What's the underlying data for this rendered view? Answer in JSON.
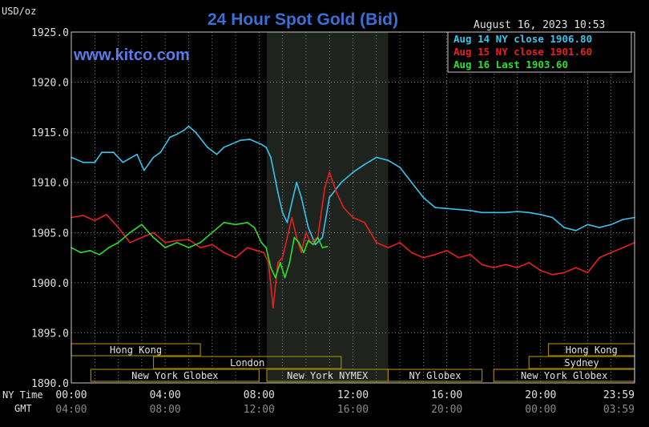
{
  "chart_data": {
    "type": "line",
    "title": "24 Hour Spot Gold (Bid)",
    "watermark": "www.kitco.com",
    "timestamp": "August 16, 2023 10:53",
    "ylabel": "USD/oz",
    "ylim": [
      1890,
      1925
    ],
    "yticks": [
      "1925.0",
      "1920.0",
      "1915.0",
      "1910.0",
      "1905.0",
      "1900.0",
      "1895.0",
      "1890.0"
    ],
    "x_axis_ny_label": "NY Time",
    "x_axis_gmt_label": "GMT",
    "xticks_ny": [
      "00:00",
      "04:00",
      "08:00",
      "12:00",
      "16:00",
      "20:00",
      "23:59"
    ],
    "xticks_gmt": [
      "04:00",
      "08:00",
      "12:00",
      "16:00",
      "20:00",
      "00:00",
      "03:59"
    ],
    "xlim": [
      0,
      24
    ],
    "shaded_region": [
      8.33,
      13.5
    ],
    "grid": true,
    "legend_position": "top-right",
    "colors": {
      "background": "#000000",
      "grid": "#c8c8c8",
      "title": "#3a6fd8",
      "watermark": "#5a7be8",
      "sessions": "#a08000",
      "session_text": "#e0e0e0",
      "shade": "#1e231e"
    },
    "markets": [
      {
        "name": "Hong Kong",
        "row": 0,
        "start": 0,
        "end": 5.5
      },
      {
        "name": "Hong Kong",
        "row": 0,
        "start": 20.33,
        "end": 24
      },
      {
        "name": "London",
        "row": 1,
        "start": 3.5,
        "end": 11.5
      },
      {
        "name": "Sydney",
        "row": 1,
        "start": 19.5,
        "end": 24
      },
      {
        "name": "New York Globex",
        "row": 2,
        "start": 0.83,
        "end": 8.0
      },
      {
        "name": "New York NYMEX",
        "row": 2,
        "start": 8.33,
        "end": 13.5
      },
      {
        "name": "NY Globex",
        "row": 2,
        "start": 13.5,
        "end": 17.5
      },
      {
        "name": "New York Globex",
        "row": 2,
        "start": 18.0,
        "end": 24
      }
    ],
    "series": [
      {
        "name": "Aug 14 NY close 1906.80",
        "color": "#3ac3ec",
        "x": [
          0,
          0.5,
          1.0,
          1.3,
          1.8,
          2.2,
          2.8,
          3.1,
          3.5,
          3.8,
          4.2,
          4.5,
          4.8,
          5.0,
          5.3,
          5.8,
          6.2,
          6.5,
          6.8,
          7.2,
          7.6,
          7.9,
          8.1,
          8.3,
          8.5,
          8.8,
          9.0,
          9.2,
          9.4,
          9.6,
          9.8,
          10.1,
          10.4,
          10.7,
          11.0,
          11.5,
          12.0,
          12.5,
          13.0,
          13.5,
          14.0,
          14.5,
          15.0,
          15.5,
          16.0,
          16.5,
          17.0,
          17.5,
          18.0,
          18.5,
          19.0,
          19.5,
          20.0,
          20.5,
          21.0,
          21.5,
          22.0,
          22.5,
          23.0,
          23.5,
          24.0
        ],
        "y": [
          1912.5,
          1912.0,
          1912.0,
          1913.0,
          1913.0,
          1912.0,
          1912.8,
          1911.2,
          1912.5,
          1913.0,
          1914.5,
          1914.8,
          1915.2,
          1915.6,
          1915.0,
          1913.5,
          1912.8,
          1913.5,
          1913.8,
          1914.2,
          1914.3,
          1914.0,
          1913.8,
          1913.5,
          1912.5,
          1909.0,
          1907.0,
          1906.0,
          1908.0,
          1910.0,
          1908.5,
          1905.5,
          1903.8,
          1904.5,
          1908.5,
          1910.0,
          1911.0,
          1911.8,
          1912.5,
          1912.2,
          1911.5,
          1910.0,
          1908.5,
          1907.5,
          1907.4,
          1907.3,
          1907.2,
          1907.0,
          1907.0,
          1907.0,
          1907.1,
          1907.0,
          1906.8,
          1906.5,
          1905.5,
          1905.2,
          1905.8,
          1905.5,
          1905.8,
          1906.3,
          1906.5
        ]
      },
      {
        "name": "Aug 15 NY close 1901.60",
        "color": "#e8201e",
        "x": [
          0,
          0.5,
          1.0,
          1.5,
          2.0,
          2.5,
          3.0,
          3.5,
          4.0,
          4.5,
          5.0,
          5.5,
          6.0,
          6.5,
          7.0,
          7.5,
          7.9,
          8.2,
          8.4,
          8.6,
          8.8,
          9.0,
          9.2,
          9.4,
          9.6,
          9.8,
          10.0,
          10.2,
          10.5,
          10.8,
          11.0,
          11.3,
          11.6,
          12.0,
          12.5,
          13.0,
          13.5,
          14.0,
          14.5,
          15.0,
          15.5,
          16.0,
          16.5,
          17.0,
          17.5,
          18.0,
          18.5,
          19.0,
          19.5,
          20.0,
          20.5,
          21.0,
          21.5,
          22.0,
          22.5,
          23.0,
          23.5,
          24.0
        ],
        "y": [
          1906.5,
          1906.7,
          1906.2,
          1906.8,
          1905.5,
          1904.0,
          1904.5,
          1905.0,
          1904.0,
          1904.2,
          1904.3,
          1903.5,
          1903.8,
          1903.0,
          1902.5,
          1903.5,
          1903.2,
          1903.0,
          1902.0,
          1897.5,
          1902.0,
          1902.5,
          1904.5,
          1906.5,
          1904.5,
          1903.0,
          1905.0,
          1904.0,
          1904.5,
          1909.5,
          1911.0,
          1909.0,
          1907.5,
          1906.5,
          1906.0,
          1904.0,
          1903.5,
          1904.0,
          1903.0,
          1902.5,
          1902.8,
          1903.2,
          1902.5,
          1902.8,
          1901.8,
          1901.5,
          1901.8,
          1901.5,
          1902.0,
          1901.2,
          1900.8,
          1901.0,
          1901.5,
          1901.0,
          1902.5,
          1903.0,
          1903.5,
          1904.0
        ]
      },
      {
        "name": "Aug 16 Last 1903.60",
        "color": "#2ae028",
        "x": [
          0,
          0.4,
          0.8,
          1.2,
          1.6,
          2.0,
          2.5,
          3.0,
          3.5,
          4.0,
          4.5,
          5.0,
          5.5,
          6.0,
          6.5,
          7.0,
          7.5,
          7.8,
          8.1,
          8.3,
          8.5,
          8.7,
          8.9,
          9.1,
          9.3,
          9.5,
          9.7,
          9.9,
          10.1,
          10.3,
          10.5,
          10.7,
          10.9
        ],
        "y": [
          1903.5,
          1903.0,
          1903.2,
          1902.8,
          1903.5,
          1904.0,
          1905.0,
          1905.8,
          1904.5,
          1903.5,
          1904.0,
          1903.5,
          1904.0,
          1905.0,
          1906.0,
          1905.8,
          1906.0,
          1905.5,
          1904.0,
          1903.5,
          1901.5,
          1900.5,
          1902.0,
          1900.5,
          1902.0,
          1904.5,
          1904.0,
          1903.0,
          1904.2,
          1903.8,
          1904.5,
          1903.5,
          1903.6
        ]
      }
    ]
  }
}
